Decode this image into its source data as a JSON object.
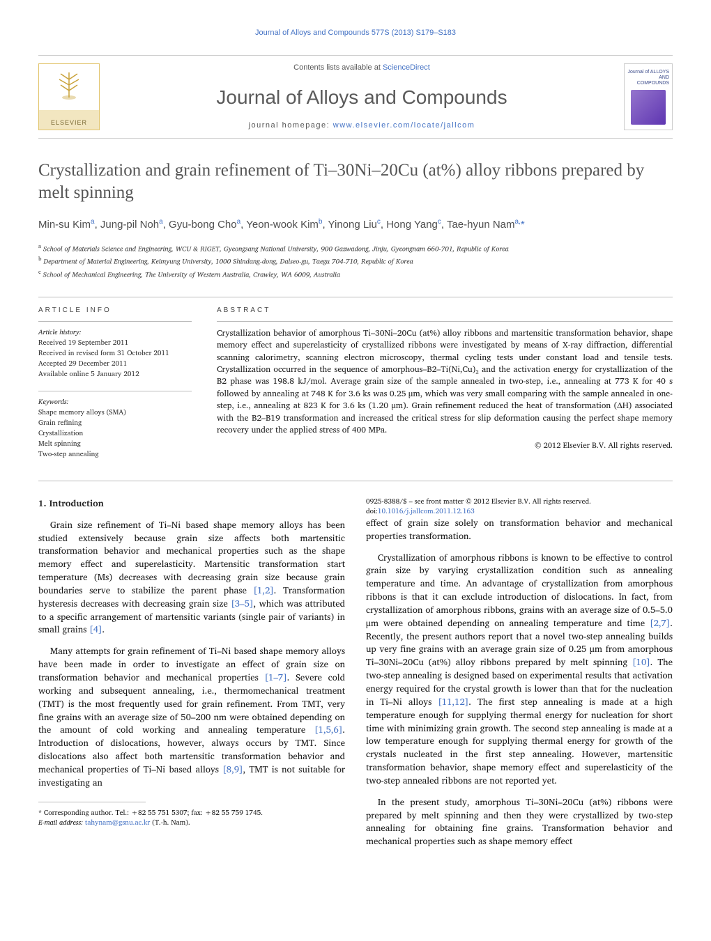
{
  "header": {
    "top_link_prefix": "Journal of Alloys and Compounds 577S (2013) S179–S183",
    "contents_line_prefix": "Contents lists available at ",
    "contents_link": "ScienceDirect",
    "journal_name": "Journal of Alloys and Compounds",
    "homepage_prefix": "journal homepage: ",
    "homepage_url": "www.elsevier.com/locate/jallcom",
    "elsevier_label": "ELSEVIER",
    "cover_label": "Journal of ALLOYS AND COMPOUNDS"
  },
  "title": "Crystallization and grain refinement of Ti–30Ni–20Cu (at%) alloy ribbons prepared by melt spinning",
  "authors_html": "Min-su Kim<sup>a</sup>, Jung-pil Noh<sup>a</sup>, Gyu-bong Cho<sup>a</sup>, Yeon-wook Kim<sup>b</sup>, Yinong Liu<sup>c</sup>, Hong Yang<sup>c</sup>, Tae-hyun Nam<sup>a,</sup><span class='corr'>*</span>",
  "affiliations": [
    {
      "sup": "a",
      "text": "School of Materials Science and Engineering, WCU & RIGET, Gyeongsang National University, 900 Gazwadong, Jinju, Gyeongnam 660-701, Republic of Korea"
    },
    {
      "sup": "b",
      "text": "Department of Material Engineering, Keimyung University, 1000 Shindang-dong, Dalseo-gu, Taegu 704-710, Republic of Korea"
    },
    {
      "sup": "c",
      "text": "School of Mechanical Engineering, The University of Western Australia, Crawley, WA 6009, Australia"
    }
  ],
  "article_info": {
    "label": "ARTICLE INFO",
    "history_label": "Article history:",
    "history": [
      "Received 19 September 2011",
      "Received in revised form 31 October 2011",
      "Accepted 29 December 2011",
      "Available online 5 January 2012"
    ],
    "keywords_label": "Keywords:",
    "keywords": [
      "Shape memory alloys (SMA)",
      "Grain refining",
      "Crystallization",
      "Melt spinning",
      "Two-step annealing"
    ]
  },
  "abstract": {
    "label": "ABSTRACT",
    "text": "Crystallization behavior of amorphous Ti–30Ni–20Cu (at%) alloy ribbons and martensitic transformation behavior, shape memory effect and superelasticity of crystallized ribbons were investigated by means of X-ray diffraction, differential scanning calorimetry, scanning electron microscopy, thermal cycling tests under constant load and tensile tests. Crystallization occurred in the sequence of amorphous–B2–Ti(Ni,Cu)₂ and the activation energy for crystallization of the B2 phase was 198.8 kJ/mol. Average grain size of the sample annealed in two-step, i.e., annealing at 773 K for 40 s followed by annealing at 748 K for 3.6 ks was 0.25 μm, which was very small comparing with the sample annealed in one-step, i.e., annealing at 823 K for 3.6 ks (1.20 μm). Grain refinement reduced the heat of transformation (ΔH) associated with the B2–B19 transformation and increased the critical stress for slip deformation causing the perfect shape memory recovery under the applied stress of 400 MPa.",
    "copyright": "© 2012 Elsevier B.V. All rights reserved."
  },
  "body": {
    "heading": "1. Introduction",
    "paragraphs": [
      "Grain size refinement of Ti–Ni based shape memory alloys has been studied extensively because grain size affects both martensitic transformation behavior and mechanical properties such as the shape memory effect and superelasticity. Martensitic transformation start temperature (Ms) decreases with decreasing grain size because grain boundaries serve to stabilize the parent phase <span class='ref-link'>[1,2]</span>. Transformation hysteresis decreases with decreasing grain size <span class='ref-link'>[3–5]</span>, which was attributed to a specific arrangement of martensitic variants (single pair of variants) in small grains <span class='ref-link'>[4]</span>.",
      "Many attempts for grain refinement of Ti–Ni based shape memory alloys have been made in order to investigate an effect of grain size on transformation behavior and mechanical properties <span class='ref-link'>[1–7]</span>. Severe cold working and subsequent annealing, i.e., thermomechanical treatment (TMT) is the most frequently used for grain refinement. From TMT, very fine grains with an average size of 50–200 nm were obtained depending on the amount of cold working and annealing temperature <span class='ref-link'>[1,5,6]</span>. Introduction of dislocations, however, always occurs by TMT. Since dislocations also affect both martensitic transformation behavior and mechanical properties of Ti–Ni based alloys <span class='ref-link'>[8,9]</span>, TMT is not suitable for investigating an",
      "effect of grain size solely on transformation behavior and mechanical properties transformation.",
      "Crystallization of amorphous ribbons is known to be effective to control grain size by varying crystallization condition such as annealing temperature and time. An advantage of crystallization from amorphous ribbons is that it can exclude introduction of dislocations. In fact, from crystallization of amorphous ribbons, grains with an average size of 0.5–5.0 μm were obtained depending on annealing temperature and time <span class='ref-link'>[2,7]</span>. Recently, the present authors report that a novel two-step annealing builds up very fine grains with an average grain size of 0.25 μm from amorphous Ti–30Ni–20Cu (at%) alloy ribbons prepared by melt spinning <span class='ref-link'>[10]</span>. The two-step annealing is designed based on experimental results that activation energy required for the crystal growth is lower than that for the nucleation in Ti–Ni alloys <span class='ref-link'>[11,12]</span>. The first step annealing is made at a high temperature enough for supplying thermal energy for nucleation for short time with minimizing grain growth. The second step annealing is made at a low temperature enough for supplying thermal energy for growth of the crystals nucleated in the first step annealing. However, martensitic transformation behavior, shape memory effect and superelasticity of the two-step annealed ribbons are not reported yet.",
      "In the present study, amorphous Ti–30Ni–20Cu (at%) ribbons were prepared by melt spinning and then they were crystallized by two-step annealing for obtaining fine grains. Transformation behavior and mechanical properties such as shape memory effect"
    ]
  },
  "footer": {
    "corr_line": "* Corresponding author. Tel.: +82 55 751 5307; fax: +82 55 759 1745.",
    "email_label": "E-mail address: ",
    "email": "tahynam@gsnu.ac.kr",
    "email_suffix": " (T.-h. Nam).",
    "issn_line": "0925-8388/$ – see front matter © 2012 Elsevier B.V. All rights reserved.",
    "doi_prefix": "doi:",
    "doi": "10.1016/j.jallcom.2011.12.163"
  },
  "colors": {
    "link": "#4472c4",
    "heading_gray": "#555555",
    "author_gray": "#4e4e4e",
    "rule": "#bbbbbb",
    "elsevier_gold": "#c9a23a"
  }
}
